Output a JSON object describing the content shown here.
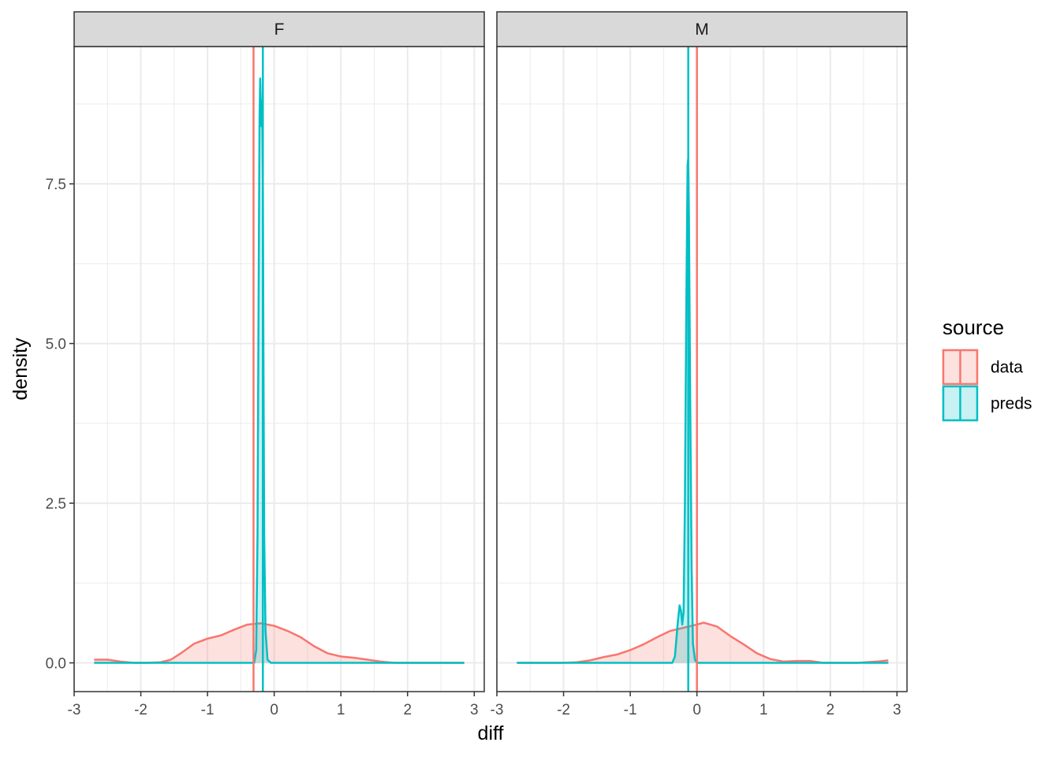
{
  "chart_data": {
    "type": "area",
    "xlabel": "diff",
    "ylabel": "density",
    "xlim": [
      -3,
      3.15
    ],
    "ylim": [
      -0.45,
      9.65
    ],
    "x_ticks": [
      -3,
      -2,
      -1,
      0,
      1,
      2,
      3
    ],
    "x_tick_labels": [
      "-3",
      "-2",
      "-1",
      "0",
      "1",
      "2",
      "3"
    ],
    "y_ticks": [
      0,
      2.5,
      5,
      7.5
    ],
    "y_tick_labels": [
      "0.0",
      "2.5",
      "5.0",
      "7.5"
    ],
    "grid": true,
    "legend": {
      "title": "source",
      "position": "right",
      "entries": [
        {
          "label": "data",
          "color": "#F8766D",
          "fill": "#F8766D"
        },
        {
          "label": "preds",
          "color": "#00BFC4",
          "fill": "#00BFC4"
        }
      ]
    },
    "panels": [
      {
        "strip": "F",
        "series": [
          {
            "name": "data",
            "kind": "density",
            "mean_line": -0.31,
            "points": [
              [
                -2.7,
                0.05
              ],
              [
                -2.5,
                0.05
              ],
              [
                -2.3,
                0.02
              ],
              [
                -2.1,
                0.0
              ],
              [
                -1.9,
                0.0
              ],
              [
                -1.7,
                0.01
              ],
              [
                -1.55,
                0.05
              ],
              [
                -1.4,
                0.15
              ],
              [
                -1.2,
                0.3
              ],
              [
                -1.0,
                0.38
              ],
              [
                -0.8,
                0.43
              ],
              [
                -0.6,
                0.52
              ],
              [
                -0.4,
                0.6
              ],
              [
                -0.2,
                0.62
              ],
              [
                0.0,
                0.58
              ],
              [
                0.2,
                0.5
              ],
              [
                0.4,
                0.4
              ],
              [
                0.6,
                0.26
              ],
              [
                0.8,
                0.15
              ],
              [
                1.0,
                0.1
              ],
              [
                1.2,
                0.08
              ],
              [
                1.4,
                0.05
              ],
              [
                1.6,
                0.02
              ],
              [
                1.8,
                0.0
              ],
              [
                2.0,
                0.0
              ],
              [
                2.2,
                0.0
              ],
              [
                2.5,
                0.0
              ],
              [
                2.85,
                0.0
              ]
            ]
          },
          {
            "name": "preds",
            "kind": "density",
            "mean_line": -0.17,
            "points": [
              [
                -2.7,
                0.0
              ],
              [
                -0.4,
                0.0
              ],
              [
                -0.3,
                0.0
              ],
              [
                -0.27,
                0.2
              ],
              [
                -0.25,
                2.0
              ],
              [
                -0.235,
                5.5
              ],
              [
                -0.22,
                8.5
              ],
              [
                -0.21,
                9.15
              ],
              [
                -0.2,
                8.7
              ],
              [
                -0.19,
                8.4
              ],
              [
                -0.18,
                8.8
              ],
              [
                -0.17,
                7.5
              ],
              [
                -0.16,
                4.5
              ],
              [
                -0.15,
                2.0
              ],
              [
                -0.13,
                0.5
              ],
              [
                -0.1,
                0.05
              ],
              [
                -0.05,
                0.0
              ],
              [
                2.85,
                0.0
              ]
            ]
          }
        ]
      },
      {
        "strip": "M",
        "series": [
          {
            "name": "data",
            "kind": "density",
            "mean_line": 0.0,
            "points": [
              [
                -2.7,
                0.0
              ],
              [
                -2.0,
                0.0
              ],
              [
                -1.8,
                0.01
              ],
              [
                -1.6,
                0.04
              ],
              [
                -1.4,
                0.09
              ],
              [
                -1.2,
                0.13
              ],
              [
                -1.0,
                0.2
              ],
              [
                -0.8,
                0.29
              ],
              [
                -0.6,
                0.4
              ],
              [
                -0.4,
                0.5
              ],
              [
                -0.2,
                0.55
              ],
              [
                0.0,
                0.6
              ],
              [
                0.1,
                0.63
              ],
              [
                0.3,
                0.57
              ],
              [
                0.5,
                0.42
              ],
              [
                0.7,
                0.29
              ],
              [
                0.9,
                0.15
              ],
              [
                1.1,
                0.06
              ],
              [
                1.3,
                0.02
              ],
              [
                1.5,
                0.03
              ],
              [
                1.7,
                0.03
              ],
              [
                1.9,
                0.0
              ],
              [
                2.1,
                0.0
              ],
              [
                2.4,
                0.0
              ],
              [
                2.7,
                0.02
              ],
              [
                2.87,
                0.04
              ]
            ]
          },
          {
            "name": "preds",
            "kind": "density",
            "mean_line": -0.13,
            "points": [
              [
                -2.7,
                0.0
              ],
              [
                -0.37,
                0.0
              ],
              [
                -0.33,
                0.1
              ],
              [
                -0.29,
                0.6
              ],
              [
                -0.26,
                0.9
              ],
              [
                -0.24,
                0.82
              ],
              [
                -0.22,
                0.6
              ],
              [
                -0.2,
                0.8
              ],
              [
                -0.18,
                2.5
              ],
              [
                -0.16,
                5.5
              ],
              [
                -0.14,
                7.8
              ],
              [
                -0.13,
                7.9
              ],
              [
                -0.12,
                7.0
              ],
              [
                -0.1,
                4.0
              ],
              [
                -0.08,
                1.5
              ],
              [
                -0.06,
                0.3
              ],
              [
                -0.03,
                0.05
              ],
              [
                0.0,
                0.0
              ],
              [
                2.87,
                0.0
              ]
            ]
          }
        ]
      }
    ]
  }
}
